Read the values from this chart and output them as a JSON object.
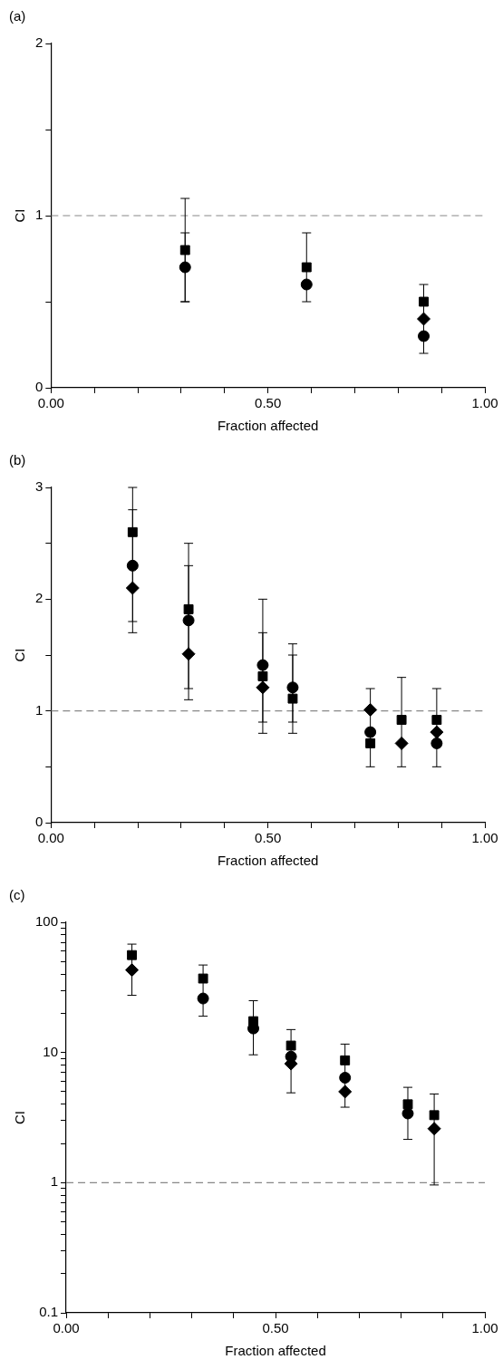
{
  "chart_data": [
    {
      "type": "scatter",
      "title": "(a)",
      "xlabel": "Fraction affected",
      "ylabel": "CI",
      "grid": false,
      "legend": false,
      "x": [
        0.309,
        0.589,
        0.859
      ],
      "xlim": [
        0,
        1
      ],
      "xticks": [
        {
          "value": 0,
          "label": "0.00"
        },
        {
          "value": 0.1,
          "label": null
        },
        {
          "value": 0.2,
          "label": null
        },
        {
          "value": 0.3,
          "label": null
        },
        {
          "value": 0.4,
          "label": null
        },
        {
          "value": 0.5,
          "label": "0.50"
        },
        {
          "value": 0.6,
          "label": null
        },
        {
          "value": 0.7,
          "label": null
        },
        {
          "value": 0.8,
          "label": null
        },
        {
          "value": 0.9,
          "label": null
        },
        {
          "value": 1,
          "label": "1.00"
        }
      ],
      "ylim": [
        0,
        2
      ],
      "yticks": [
        0,
        {
          "value": 0.5,
          "label": null
        },
        1,
        {
          "value": 1.5,
          "label": null
        },
        2
      ],
      "ref_lines": [
        {
          "axis": "y",
          "value": 1,
          "color": "#888888",
          "line_style": "dashed"
        }
      ],
      "series": [
        {
          "color": "#000000",
          "marker": "square",
          "values": [
            0.8,
            0.7,
            0.5
          ],
          "errors": [
            [
              0.5,
              1.1
            ],
            [
              0.5,
              0.9
            ],
            null
          ]
        },
        {
          "color": "#000000",
          "marker": "circle",
          "values": [
            0.7,
            0.6,
            0.3
          ],
          "errors": [
            [
              0.5,
              0.9
            ],
            null,
            null
          ]
        },
        {
          "color": "#000000",
          "marker": "diamond",
          "values": [
            null,
            null,
            0.4
          ],
          "errors": [
            null,
            null,
            [
              0.2,
              0.6
            ]
          ]
        }
      ]
    },
    {
      "type": "scatter",
      "title": "(b)",
      "xlabel": "Fraction affected",
      "ylabel": "CI",
      "grid": false,
      "legend": false,
      "x": [
        0.188,
        0.317,
        0.488,
        0.557,
        0.736,
        0.808,
        0.889
      ],
      "xlim": [
        0,
        1
      ],
      "xticks": [
        {
          "value": 0,
          "label": "0.00"
        },
        {
          "value": 0.1,
          "label": null
        },
        {
          "value": 0.2,
          "label": null
        },
        {
          "value": 0.3,
          "label": null
        },
        {
          "value": 0.4,
          "label": null
        },
        {
          "value": 0.5,
          "label": "0.50"
        },
        {
          "value": 0.6,
          "label": null
        },
        {
          "value": 0.7,
          "label": null
        },
        {
          "value": 0.8,
          "label": null
        },
        {
          "value": 0.9,
          "label": null
        },
        {
          "value": 1,
          "label": "1.00"
        }
      ],
      "ylim": [
        0,
        3
      ],
      "yticks": [
        0,
        {
          "value": 0.5,
          "label": null
        },
        1,
        {
          "value": 1.5,
          "label": null
        },
        2,
        {
          "value": 2.5,
          "label": null
        },
        3
      ],
      "ref_lines": [
        {
          "axis": "y",
          "value": 1,
          "color": "#888888",
          "line_style": "dashed"
        }
      ],
      "series": [
        {
          "color": "#000000",
          "marker": "square",
          "values": [
            2.6,
            1.91,
            1.31,
            1.11,
            0.71,
            0.92,
            0.92
          ],
          "errors": [
            [
              1.7,
              3.0
            ],
            [
              1.1,
              2.5
            ],
            [
              0.8,
              2.0
            ],
            [
              0.8,
              1.6
            ],
            [
              0.5,
              1.2
            ],
            [
              0.5,
              1.3
            ],
            [
              0.5,
              1.2
            ]
          ]
        },
        {
          "color": "#000000",
          "marker": "circle",
          "values": [
            2.3,
            1.81,
            1.41,
            1.21,
            0.81,
            null,
            0.71
          ],
          "errors": [
            [
              1.8,
              2.8
            ],
            [
              1.2,
              2.3
            ],
            [
              0.9,
              1.7
            ],
            [
              0.9,
              1.5
            ],
            null,
            null,
            null
          ]
        },
        {
          "color": "#000000",
          "marker": "diamond",
          "values": [
            2.1,
            1.51,
            1.21,
            null,
            1.01,
            0.71,
            0.81
          ]
        }
      ]
    },
    {
      "type": "scatter",
      "title": "(c)",
      "xlabel": "Fraction affected",
      "ylabel": "CI",
      "grid": false,
      "legend": false,
      "log": "y",
      "x": [
        0.157,
        0.327,
        0.447,
        0.537,
        0.666,
        0.816,
        0.879
      ],
      "xlim": [
        0,
        1
      ],
      "xticks": [
        {
          "value": 0,
          "label": "0.00"
        },
        {
          "value": 0.1,
          "label": null
        },
        {
          "value": 0.2,
          "label": null
        },
        {
          "value": 0.3,
          "label": null
        },
        {
          "value": 0.4,
          "label": null
        },
        {
          "value": 0.5,
          "label": "0.50"
        },
        {
          "value": 0.6,
          "label": null
        },
        {
          "value": 0.7,
          "label": null
        },
        {
          "value": 0.8,
          "label": null
        },
        {
          "value": 0.9,
          "label": null
        },
        {
          "value": 1,
          "label": "1.00"
        }
      ],
      "ylim": [
        0.1,
        100
      ],
      "yticks": [
        0.1,
        {
          "value": 0.2,
          "label": null
        },
        {
          "value": 0.3,
          "label": null
        },
        {
          "value": 0.4,
          "label": null
        },
        {
          "value": 0.5,
          "label": null
        },
        {
          "value": 0.6,
          "label": null
        },
        {
          "value": 0.7,
          "label": null
        },
        {
          "value": 0.8,
          "label": null
        },
        {
          "value": 0.9,
          "label": null
        },
        1,
        {
          "value": 2,
          "label": null
        },
        {
          "value": 3,
          "label": null
        },
        {
          "value": 4,
          "label": null
        },
        {
          "value": 5,
          "label": null
        },
        {
          "value": 6,
          "label": null
        },
        {
          "value": 7,
          "label": null
        },
        {
          "value": 8,
          "label": null
        },
        {
          "value": 9,
          "label": null
        },
        10,
        {
          "value": 20,
          "label": null
        },
        {
          "value": 30,
          "label": null
        },
        {
          "value": 40,
          "label": null
        },
        {
          "value": 50,
          "label": null
        },
        {
          "value": 60,
          "label": null
        },
        {
          "value": 70,
          "label": null
        },
        {
          "value": 80,
          "label": null
        },
        {
          "value": 90,
          "label": null
        },
        100
      ],
      "ref_lines": [
        {
          "axis": "y",
          "value": 1,
          "color": "#888888",
          "line_style": "dashed"
        }
      ],
      "series": [
        {
          "color": "#000000",
          "marker": "square",
          "values": [
            56,
            37,
            17.4,
            11.3,
            8.7,
            4.0,
            3.3
          ],
          "errors": [
            [
              27.5,
              68
            ],
            [
              19,
              47
            ],
            [
              9.6,
              25
            ],
            [
              4.9,
              15
            ],
            [
              3.8,
              11.6
            ],
            [
              2.15,
              5.4
            ],
            [
              0.96,
              4.8
            ]
          ]
        },
        {
          "color": "#000000",
          "marker": "circle",
          "values": [
            null,
            26,
            15.3,
            9.3,
            6.4,
            3.4,
            null
          ]
        },
        {
          "color": "#000000",
          "marker": "diamond",
          "values": [
            43,
            null,
            null,
            8.2,
            5.0,
            null,
            2.6
          ]
        }
      ]
    }
  ]
}
